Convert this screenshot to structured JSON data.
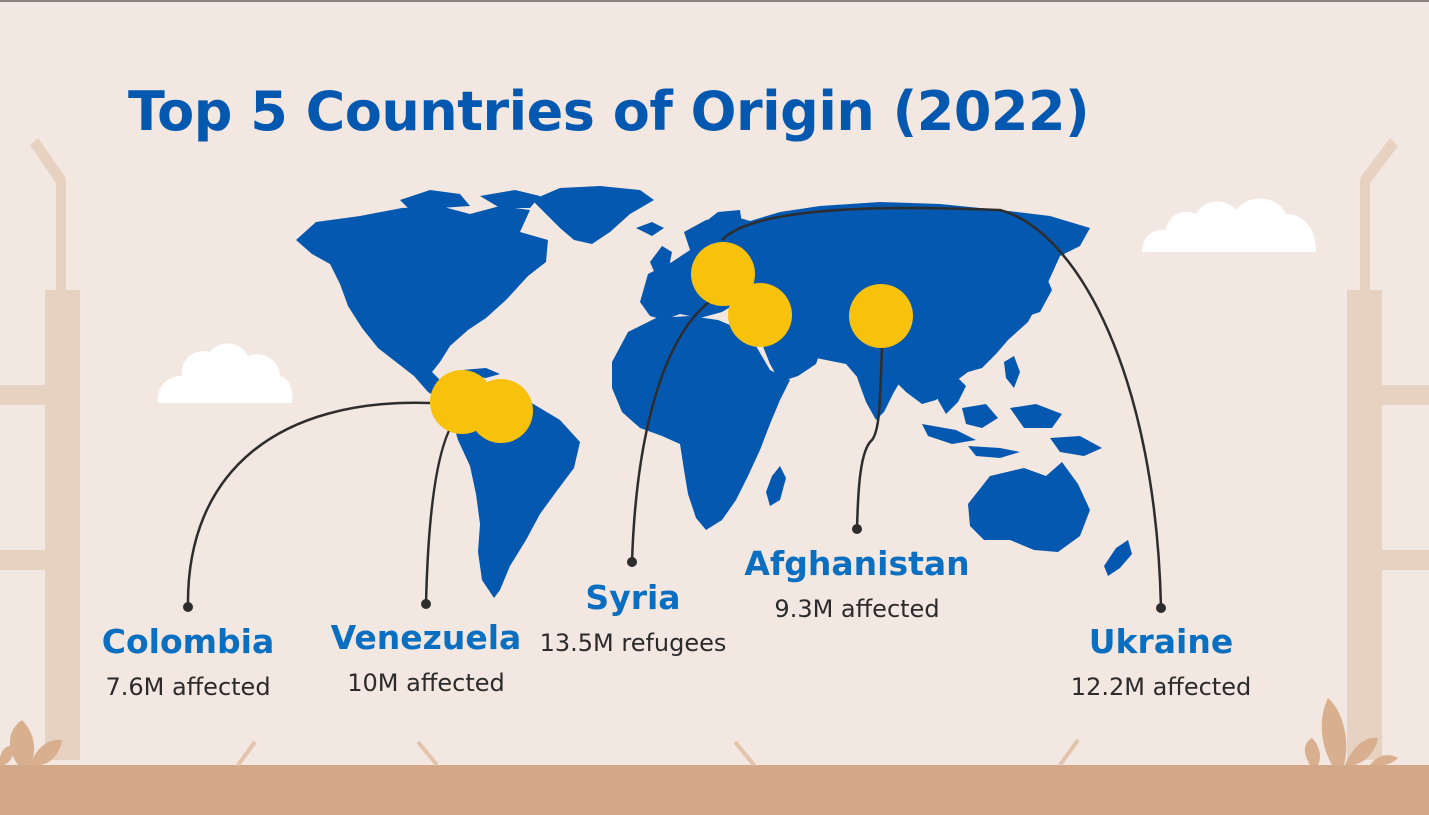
{
  "title": "Top 5 Countries of Origin (2022)",
  "colors": {
    "background": "#f3e7e1",
    "land": "#0558b0",
    "marker": "#f8c20c",
    "heading": "#0558b0",
    "country_label": "#0a6fc0",
    "ground": "#d2a889",
    "posts": "#e7d2c1"
  },
  "icons": [
    "cloud-icon",
    "plant-icon",
    "fence-post-icon"
  ],
  "countries": [
    {
      "name": "Colombia",
      "stat": "7.6M affected"
    },
    {
      "name": "Venezuela",
      "stat": "10M affected"
    },
    {
      "name": "Syria",
      "stat": "13.5M refugees"
    },
    {
      "name": "Afghanistan",
      "stat": "9.3M affected"
    },
    {
      "name": "Ukraine",
      "stat": "12.2M affected"
    }
  ]
}
